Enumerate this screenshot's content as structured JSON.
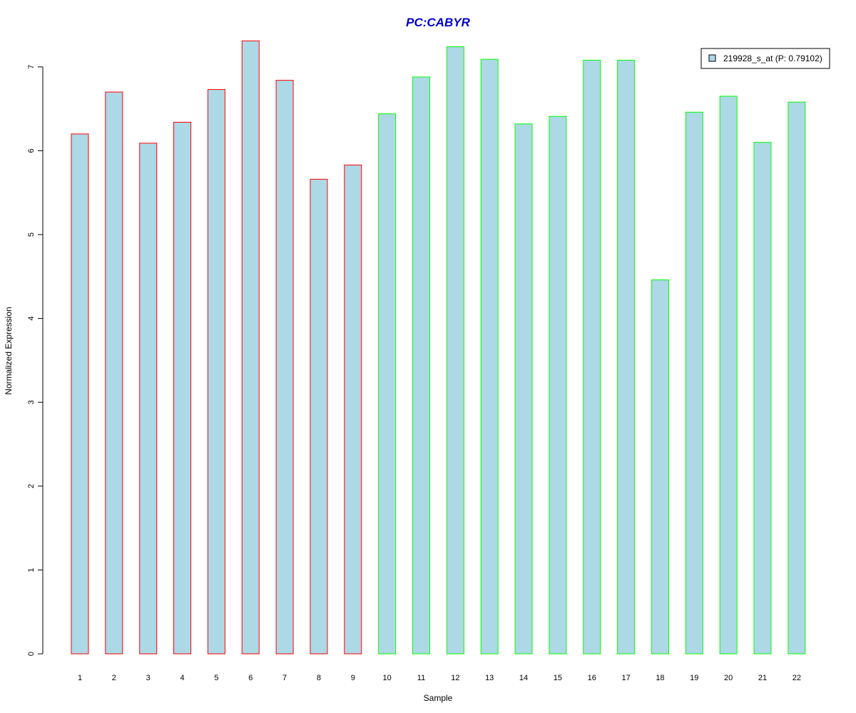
{
  "chart_data": {
    "type": "bar",
    "title": "PC:CABYR",
    "xlabel": "Sample",
    "ylabel": "Normalized Expression",
    "categories": [
      "1",
      "2",
      "3",
      "4",
      "5",
      "6",
      "7",
      "8",
      "9",
      "10",
      "11",
      "12",
      "13",
      "14",
      "15",
      "16",
      "17",
      "18",
      "19",
      "20",
      "21",
      "22"
    ],
    "series": [
      {
        "name": "219928_s_at (P: 0.79102)",
        "values": [
          6.2,
          6.7,
          6.09,
          6.34,
          6.73,
          7.31,
          6.84,
          5.66,
          5.83,
          6.44,
          6.88,
          7.24,
          7.09,
          6.32,
          6.41,
          7.08,
          7.08,
          4.46,
          6.46,
          6.65,
          6.1,
          6.58
        ]
      }
    ],
    "groups": [
      1,
      1,
      1,
      1,
      1,
      1,
      1,
      1,
      1,
      2,
      2,
      2,
      2,
      2,
      2,
      2,
      2,
      2,
      2,
      2,
      2,
      2
    ],
    "ylim": [
      0,
      7.3
    ],
    "yticks": [
      0,
      1,
      2,
      3,
      4,
      5,
      6,
      7
    ],
    "grid": false,
    "legend_position": "top-right",
    "colors": {
      "bar_fill": "#add8e6",
      "group1_border": "#ff0000",
      "group2_border": "#00ff00",
      "title": "#0000cc"
    }
  }
}
